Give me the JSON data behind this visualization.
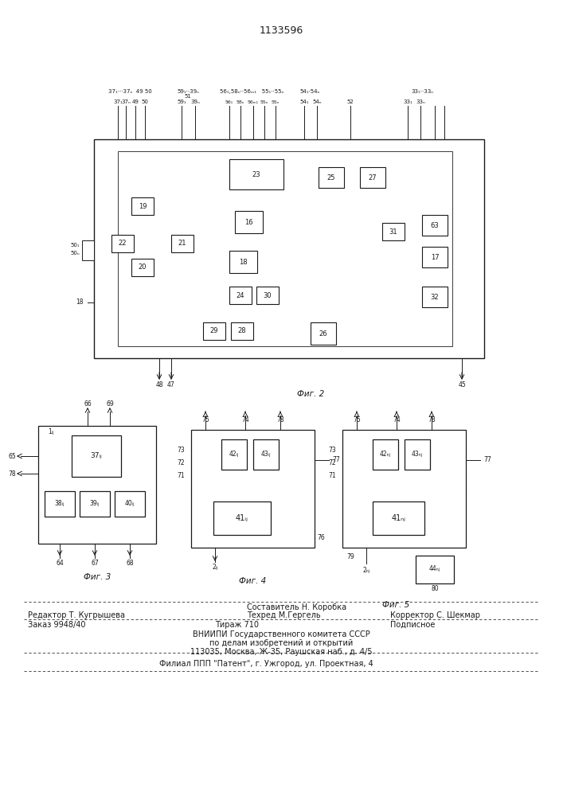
{
  "title": "1133596",
  "bg_color": "#ffffff",
  "line_color": "#1a1a1a",
  "fig2_caption": "Фиг. 2",
  "fig3_caption": "Фиг. 3",
  "fig4_caption": "Фиг. 4",
  "fig5_caption": "Фиг. 5",
  "footer": {
    "editor": "Редактор Т. Кугрышева",
    "composer": "Составитель Н. Коробка",
    "techred": "Техред М.Гергель",
    "corrector": "Корректор С. Шекмар",
    "order": "Заказ 9948/40",
    "tirazh": "Тираж 710",
    "podpisnoe": "Подписное",
    "vniip1": "ВНИИПИ Государственного комитета СССР",
    "vniip2": "по делам изобретений и открытий",
    "vniip3": "113035, Москва, Ж-35, Раушская наб., д. 4/5",
    "filial": "Филиал ППП \"Патент\", г. Ужгород, ул. Проектная, 4"
  }
}
